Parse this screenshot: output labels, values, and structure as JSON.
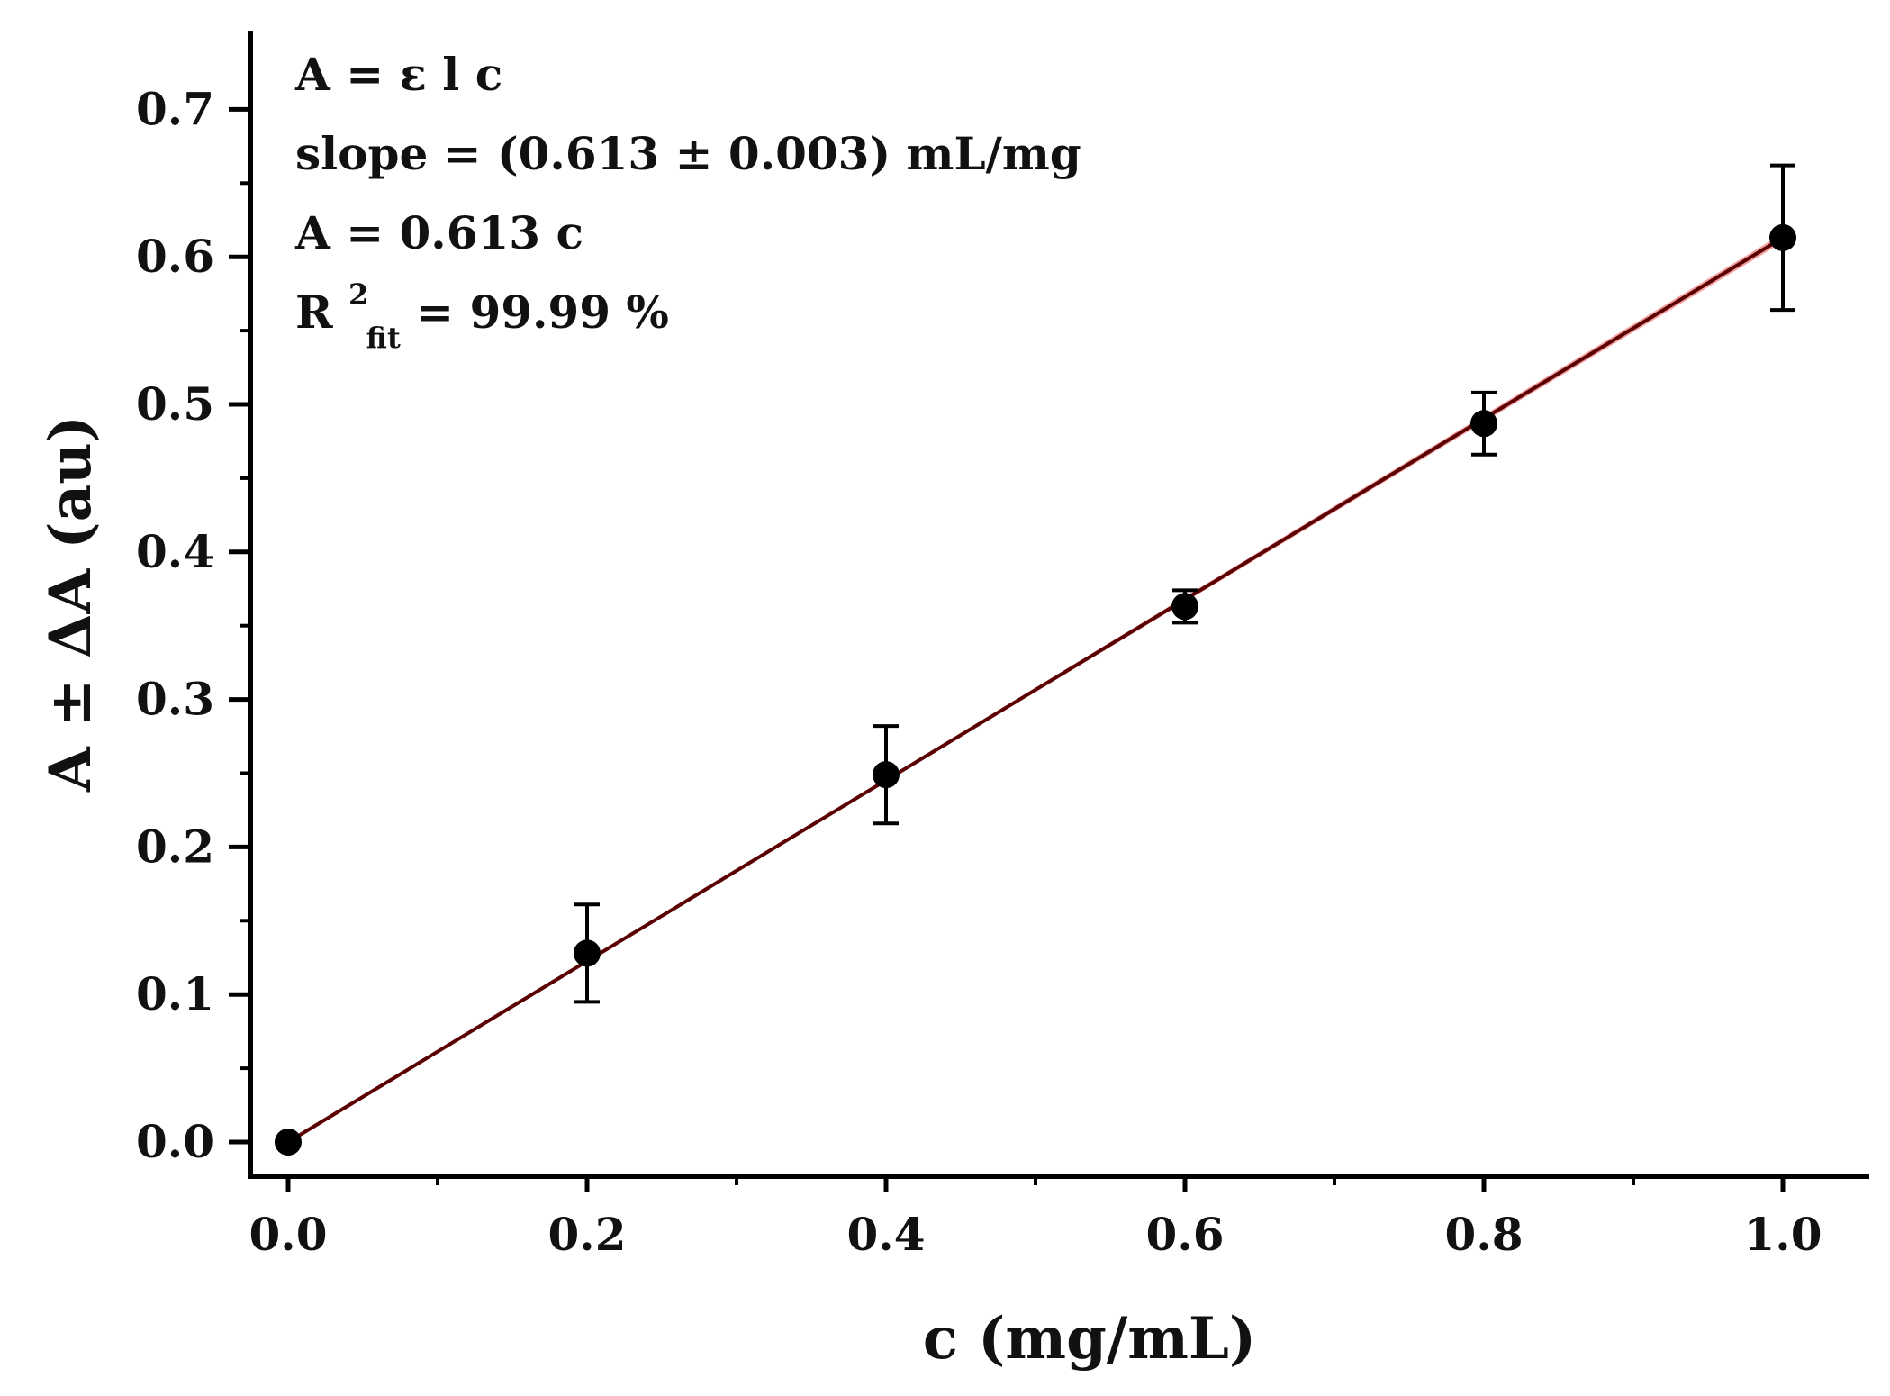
{
  "chart_data": {
    "type": "scatter",
    "xlabel": "c (mg/mL)",
    "ylabel": "A ± ΔA (au)",
    "xlim": [
      -0.025,
      1.06
    ],
    "ylim": [
      -0.025,
      0.75
    ],
    "x_ticks": [
      0.0,
      0.2,
      0.4,
      0.6,
      0.8,
      1.0
    ],
    "x_tick_labels": [
      "0.0",
      "0.2",
      "0.4",
      "0.6",
      "0.8",
      "1.0"
    ],
    "x_minor_ticks": [
      0.1,
      0.3,
      0.5,
      0.7,
      0.9
    ],
    "y_ticks": [
      0.0,
      0.1,
      0.2,
      0.3,
      0.4,
      0.5,
      0.6,
      0.7
    ],
    "y_tick_labels": [
      "0.0",
      "0.1",
      "0.2",
      "0.3",
      "0.4",
      "0.5",
      "0.6",
      "0.7"
    ],
    "y_minor_ticks": [
      0.05,
      0.15,
      0.25,
      0.35,
      0.45,
      0.55,
      0.65
    ],
    "grid": false,
    "series": [
      {
        "type": "scatter",
        "x": [
          0.0,
          0.2,
          0.4,
          0.6,
          0.8,
          1.0
        ],
        "y": [
          0.0,
          0.128,
          0.249,
          0.363,
          0.487,
          0.613
        ],
        "y_err": [
          0.0,
          0.033,
          0.033,
          0.011,
          0.021,
          0.049
        ],
        "color": "#000000"
      },
      {
        "type": "line",
        "slope": 0.613,
        "slope_err": 0.003,
        "x_range": [
          0.0,
          1.0
        ],
        "color": "#5a0000",
        "band_color": "#f08080"
      }
    ],
    "annotations": {
      "equation": "A = ε l c",
      "slope": "slope = (0.613 ± 0.003) mL/mg",
      "fit": "A = 0.613 c",
      "r2_base": "R",
      "r2_sup": "2",
      "r2_sub": "fit",
      "r2_value": " = 99.99 %"
    }
  }
}
